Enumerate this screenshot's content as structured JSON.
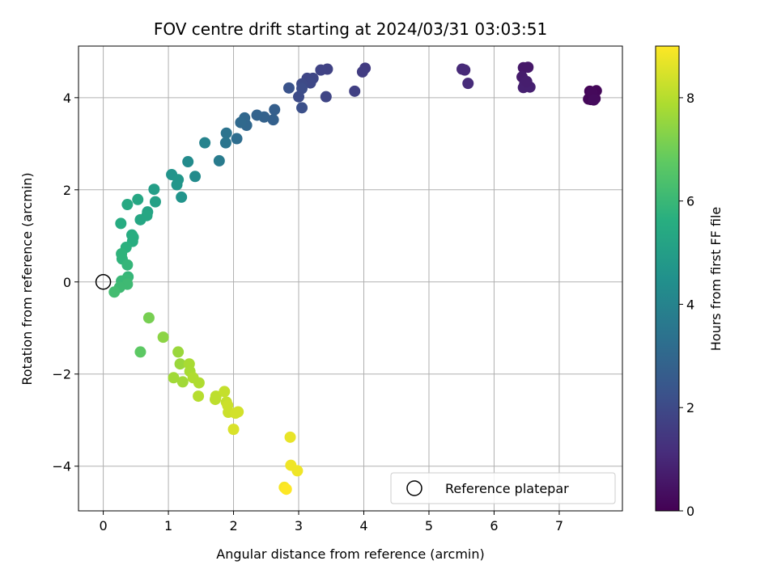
{
  "chart_data": {
    "type": "scatter",
    "title": "FOV centre drift starting at 2024/03/31 03:03:51",
    "xlabel": "Angular distance from reference (arcmin)",
    "ylabel": "Rotation from reference (arcmin)",
    "xlim": [
      -0.38,
      7.97
    ],
    "ylim": [
      -4.97,
      5.12
    ],
    "xticks": [
      0,
      1,
      2,
      3,
      4,
      5,
      6,
      7
    ],
    "yticks": [
      -4,
      -2,
      0,
      2,
      4
    ],
    "grid": true,
    "colormap": "viridis",
    "colorbar": {
      "label": "Hours from first FF file",
      "range": [
        0,
        9.0
      ],
      "ticks": [
        0,
        2,
        4,
        6,
        8
      ]
    },
    "reference": {
      "x": 0,
      "y": 0,
      "label": "Reference platepar"
    },
    "legend_position": "lower-right",
    "points": [
      {
        "x": 7.47,
        "y": 4.14,
        "t": 0.05
      },
      {
        "x": 7.48,
        "y": 3.96,
        "t": 0.1
      },
      {
        "x": 7.52,
        "y": 4.0,
        "t": 0.1
      },
      {
        "x": 7.57,
        "y": 4.15,
        "t": 0.15
      },
      {
        "x": 7.45,
        "y": 3.97,
        "t": 0.15
      },
      {
        "x": 7.55,
        "y": 3.98,
        "t": 0.2
      },
      {
        "x": 7.5,
        "y": 4.12,
        "t": 0.2
      },
      {
        "x": 7.53,
        "y": 3.95,
        "t": 0.25
      },
      {
        "x": 6.45,
        "y": 4.65,
        "t": 0.6
      },
      {
        "x": 6.52,
        "y": 4.66,
        "t": 0.6
      },
      {
        "x": 6.43,
        "y": 4.45,
        "t": 0.7
      },
      {
        "x": 6.47,
        "y": 4.3,
        "t": 0.75
      },
      {
        "x": 6.45,
        "y": 4.22,
        "t": 0.8
      },
      {
        "x": 6.55,
        "y": 4.23,
        "t": 0.8
      },
      {
        "x": 6.5,
        "y": 4.35,
        "t": 0.75
      },
      {
        "x": 5.51,
        "y": 4.62,
        "t": 1.05
      },
      {
        "x": 5.55,
        "y": 4.6,
        "t": 1.05
      },
      {
        "x": 5.6,
        "y": 4.31,
        "t": 1.1
      },
      {
        "x": 4.02,
        "y": 4.64,
        "t": 1.55
      },
      {
        "x": 3.98,
        "y": 4.56,
        "t": 1.6
      },
      {
        "x": 3.86,
        "y": 4.14,
        "t": 1.7
      },
      {
        "x": 3.44,
        "y": 4.62,
        "t": 1.75
      },
      {
        "x": 3.34,
        "y": 4.6,
        "t": 1.8
      },
      {
        "x": 3.42,
        "y": 4.02,
        "t": 1.85
      },
      {
        "x": 3.13,
        "y": 4.42,
        "t": 1.9
      },
      {
        "x": 3.22,
        "y": 4.42,
        "t": 1.9
      },
      {
        "x": 3.18,
        "y": 4.32,
        "t": 1.95
      },
      {
        "x": 3.05,
        "y": 4.3,
        "t": 2.0
      },
      {
        "x": 3.0,
        "y": 4.02,
        "t": 2.05
      },
      {
        "x": 3.05,
        "y": 4.2,
        "t": 2.1
      },
      {
        "x": 3.05,
        "y": 3.78,
        "t": 2.2
      },
      {
        "x": 2.85,
        "y": 4.21,
        "t": 2.3
      },
      {
        "x": 2.63,
        "y": 3.74,
        "t": 2.7
      },
      {
        "x": 2.61,
        "y": 3.52,
        "t": 2.75
      },
      {
        "x": 2.47,
        "y": 3.58,
        "t": 2.8
      },
      {
        "x": 2.36,
        "y": 3.62,
        "t": 2.85
      },
      {
        "x": 2.2,
        "y": 3.4,
        "t": 3.0
      },
      {
        "x": 2.17,
        "y": 3.56,
        "t": 3.0
      },
      {
        "x": 2.11,
        "y": 3.46,
        "t": 3.05
      },
      {
        "x": 2.05,
        "y": 3.11,
        "t": 3.2
      },
      {
        "x": 1.89,
        "y": 3.23,
        "t": 3.4
      },
      {
        "x": 1.88,
        "y": 3.02,
        "t": 3.5
      },
      {
        "x": 1.78,
        "y": 2.63,
        "t": 3.7
      },
      {
        "x": 1.56,
        "y": 3.02,
        "t": 4.0
      },
      {
        "x": 1.41,
        "y": 2.29,
        "t": 4.3
      },
      {
        "x": 1.3,
        "y": 2.61,
        "t": 4.3
      },
      {
        "x": 1.2,
        "y": 1.84,
        "t": 4.6
      },
      {
        "x": 1.05,
        "y": 2.33,
        "t": 4.6
      },
      {
        "x": 1.15,
        "y": 2.22,
        "t": 4.7
      },
      {
        "x": 1.13,
        "y": 2.11,
        "t": 4.7
      },
      {
        "x": 0.78,
        "y": 2.01,
        "t": 5.0
      },
      {
        "x": 0.8,
        "y": 1.74,
        "t": 5.1
      },
      {
        "x": 0.68,
        "y": 1.52,
        "t": 5.2
      },
      {
        "x": 0.67,
        "y": 1.44,
        "t": 5.3
      },
      {
        "x": 0.57,
        "y": 1.35,
        "t": 5.3
      },
      {
        "x": 0.53,
        "y": 1.79,
        "t": 5.3
      },
      {
        "x": 0.37,
        "y": 1.68,
        "t": 5.4
      },
      {
        "x": 0.27,
        "y": 1.27,
        "t": 5.5
      },
      {
        "x": 0.44,
        "y": 1.02,
        "t": 5.5
      },
      {
        "x": 0.46,
        "y": 0.97,
        "t": 5.6
      },
      {
        "x": 0.45,
        "y": 0.88,
        "t": 5.6
      },
      {
        "x": 0.35,
        "y": 0.75,
        "t": 5.7
      },
      {
        "x": 0.28,
        "y": 0.61,
        "t": 5.8
      },
      {
        "x": 0.29,
        "y": 0.5,
        "t": 5.8
      },
      {
        "x": 0.37,
        "y": 0.37,
        "t": 5.9
      },
      {
        "x": 0.38,
        "y": 0.11,
        "t": 5.9
      },
      {
        "x": 0.36,
        "y": 0.05,
        "t": 6.0
      },
      {
        "x": 0.28,
        "y": 0.02,
        "t": 6.0
      },
      {
        "x": 0.37,
        "y": -0.05,
        "t": 6.1
      },
      {
        "x": 0.25,
        "y": -0.12,
        "t": 6.1
      },
      {
        "x": 0.17,
        "y": -0.22,
        "t": 6.2
      },
      {
        "x": 0.57,
        "y": -1.52,
        "t": 6.7
      },
      {
        "x": 0.7,
        "y": -0.78,
        "t": 7.1
      },
      {
        "x": 0.92,
        "y": -1.2,
        "t": 7.4
      },
      {
        "x": 1.15,
        "y": -1.52,
        "t": 7.6
      },
      {
        "x": 1.18,
        "y": -1.78,
        "t": 7.6
      },
      {
        "x": 1.08,
        "y": -2.08,
        "t": 7.7
      },
      {
        "x": 1.22,
        "y": -2.17,
        "t": 7.7
      },
      {
        "x": 1.32,
        "y": -1.78,
        "t": 7.8
      },
      {
        "x": 1.33,
        "y": -1.94,
        "t": 7.8
      },
      {
        "x": 1.38,
        "y": -2.08,
        "t": 7.9
      },
      {
        "x": 1.47,
        "y": -2.19,
        "t": 7.9
      },
      {
        "x": 1.46,
        "y": -2.48,
        "t": 8.0
      },
      {
        "x": 1.73,
        "y": -2.48,
        "t": 8.1
      },
      {
        "x": 1.72,
        "y": -2.55,
        "t": 8.1
      },
      {
        "x": 1.86,
        "y": -2.38,
        "t": 8.2
      },
      {
        "x": 1.89,
        "y": -2.61,
        "t": 8.2
      },
      {
        "x": 1.91,
        "y": -2.68,
        "t": 8.3
      },
      {
        "x": 1.92,
        "y": -2.83,
        "t": 8.3
      },
      {
        "x": 2.07,
        "y": -2.82,
        "t": 8.4
      },
      {
        "x": 2.03,
        "y": -2.85,
        "t": 8.4
      },
      {
        "x": 2.0,
        "y": -3.2,
        "t": 8.5
      },
      {
        "x": 2.87,
        "y": -3.37,
        "t": 8.7
      },
      {
        "x": 2.88,
        "y": -3.98,
        "t": 8.8
      },
      {
        "x": 2.98,
        "y": -4.1,
        "t": 8.8
      },
      {
        "x": 2.78,
        "y": -4.46,
        "t": 8.9
      },
      {
        "x": 2.81,
        "y": -4.5,
        "t": 9.0
      }
    ]
  }
}
